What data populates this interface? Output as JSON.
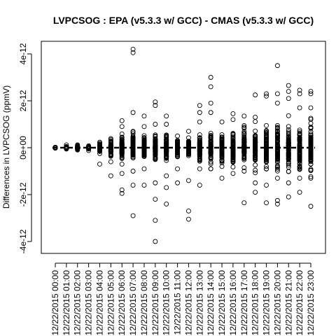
{
  "chart_data": {
    "type": "scatter",
    "title": "LVPCSOG : EPA (v5.3.3 w/ GCC) - CMAS (v5.3.3 w/ GCC)",
    "xlabel": "",
    "ylabel": "Differences in LVPCSOG (ppmV)",
    "categories": [
      "12/22/2015 00:00",
      "12/22/2015 01:00",
      "12/22/2015 02:00",
      "12/22/2015 03:00",
      "12/22/2015 04:00",
      "12/22/2015 05:00",
      "12/22/2015 06:00",
      "12/22/2015 07:00",
      "12/22/2015 08:00",
      "12/22/2015 09:00",
      "12/22/2015 10:00",
      "12/22/2015 11:00",
      "12/22/2015 12:00",
      "12/22/2015 13:00",
      "12/22/2015 14:00",
      "12/22/2015 15:00",
      "12/22/2015 16:00",
      "12/22/2015 17:00",
      "12/22/2015 18:00",
      "12/22/2015 19:00",
      "12/22/2015 20:00",
      "12/22/2015 21:00",
      "12/22/2015 22:00",
      "12/22/2015 23:00"
    ],
    "yticks": [
      -4e-12,
      -2e-12,
      0,
      2e-12,
      4e-12
    ],
    "ytick_labels": [
      "-4e-12",
      "-2e-12",
      "0e+00",
      "2e-12",
      "4e-12"
    ],
    "ylim": [
      -4.4e-12,
      4.2e-12
    ],
    "reference_line": 0,
    "grid": false,
    "legend": "none",
    "series": [
      {
        "label_points": [
          [
            0,
            -2e-14
          ],
          [
            0,
            2e-14
          ],
          [
            0,
            0
          ],
          [
            1,
            1.2e-13
          ],
          [
            1,
            -5e-14
          ],
          [
            1,
            5e-14
          ],
          [
            2,
            1.2e-13
          ],
          [
            2,
            -1e-13
          ],
          [
            2,
            8e-14
          ],
          [
            3,
            8e-14
          ],
          [
            3,
            -1.2e-13
          ],
          [
            3,
            5e-14
          ],
          [
            4,
            1.5e-13
          ],
          [
            4,
            -2.5e-13
          ],
          [
            4,
            -7e-13
          ],
          [
            5,
            3.5e-13
          ],
          [
            5,
            -3e-13
          ],
          [
            5,
            -6e-13
          ],
          [
            5,
            -1.2e-12
          ],
          [
            6,
            1.15e-12
          ],
          [
            6,
            9e-13
          ],
          [
            6,
            -7e-13
          ],
          [
            6,
            -1.1e-12
          ],
          [
            6,
            -1.8e-12
          ],
          [
            6,
            -1.95e-12
          ],
          [
            7,
            4.2e-12
          ],
          [
            7,
            4.05e-12
          ],
          [
            7,
            1.5e-12
          ],
          [
            7,
            7e-13
          ],
          [
            7,
            -1e-12
          ],
          [
            7,
            -1.6e-12
          ],
          [
            7,
            -2.9e-12
          ],
          [
            8,
            1.35e-12
          ],
          [
            8,
            9e-13
          ],
          [
            8,
            -9e-13
          ],
          [
            8,
            -1.6e-12
          ],
          [
            9,
            1.95e-12
          ],
          [
            9,
            1.8e-12
          ],
          [
            9,
            1e-12
          ],
          [
            9,
            -1.5e-12
          ],
          [
            9,
            -2.2e-12
          ],
          [
            9,
            -3.1e-12
          ],
          [
            9,
            -4e-12
          ],
          [
            10,
            1.35e-12
          ],
          [
            10,
            1e-12
          ],
          [
            10,
            -1.2e-12
          ],
          [
            10,
            -1.7e-12
          ],
          [
            10,
            -2.4e-12
          ],
          [
            11,
            5e-13
          ],
          [
            11,
            -9e-13
          ],
          [
            11,
            -1.5e-12
          ],
          [
            12,
            7e-13
          ],
          [
            12,
            -1.4e-12
          ],
          [
            12,
            -2.7e-12
          ],
          [
            12,
            -3.05e-12
          ],
          [
            13,
            1.8e-12
          ],
          [
            13,
            1.5e-12
          ],
          [
            13,
            1.1e-12
          ],
          [
            13,
            -9e-13
          ],
          [
            13,
            -1.6e-12
          ],
          [
            14,
            3e-12
          ],
          [
            14,
            2.6e-12
          ],
          [
            14,
            1.9e-12
          ],
          [
            14,
            1.5e-12
          ],
          [
            14,
            -9e-13
          ],
          [
            15,
            1.1e-12
          ],
          [
            15,
            -8e-13
          ],
          [
            15,
            -1.3e-12
          ],
          [
            16,
            1.45e-12
          ],
          [
            16,
            1.2e-12
          ],
          [
            16,
            -1.1e-12
          ],
          [
            17,
            1.35e-12
          ],
          [
            17,
            -1e-12
          ],
          [
            17,
            -2.35e-12
          ],
          [
            18,
            2.25e-12
          ],
          [
            18,
            1.3e-12
          ],
          [
            18,
            -1.5e-12
          ],
          [
            18,
            -1.9e-12
          ],
          [
            19,
            2.3e-12
          ],
          [
            19,
            2.2e-12
          ],
          [
            19,
            -1.6e-12
          ],
          [
            19,
            -2.35e-12
          ],
          [
            20,
            3.5e-12
          ],
          [
            20,
            2.3e-12
          ],
          [
            20,
            1.9e-12
          ],
          [
            20,
            -1.3e-12
          ],
          [
            20,
            -2.25e-12
          ],
          [
            20,
            -2.4e-12
          ],
          [
            21,
            2.65e-12
          ],
          [
            21,
            2.4e-12
          ],
          [
            21,
            2.1e-12
          ],
          [
            21,
            -1.5e-12
          ],
          [
            21,
            -2.1e-12
          ],
          [
            22,
            2.45e-12
          ],
          [
            22,
            2.3e-12
          ],
          [
            22,
            1.7e-12
          ],
          [
            22,
            -1.3e-12
          ],
          [
            22,
            -1.9e-12
          ],
          [
            23,
            2.4e-12
          ],
          [
            23,
            2.3e-12
          ],
          [
            23,
            1.7e-12
          ],
          [
            23,
            -1.3e-12
          ],
          [
            23,
            -2.5e-12
          ]
        ],
        "spread_by_hour": [
          2e-14,
          6e-14,
          8e-14,
          8e-14,
          2e-13,
          3e-13,
          4.5e-13,
          5.5e-13,
          4.5e-13,
          5.5e-13,
          4.5e-13,
          3.5e-13,
          3.5e-13,
          5e-13,
          6e-13,
          5e-13,
          6.5e-13,
          7e-13,
          7.5e-13,
          8.5e-13,
          9.5e-13,
          9.5e-13,
          9.5e-13,
          1e-12
        ]
      }
    ]
  }
}
